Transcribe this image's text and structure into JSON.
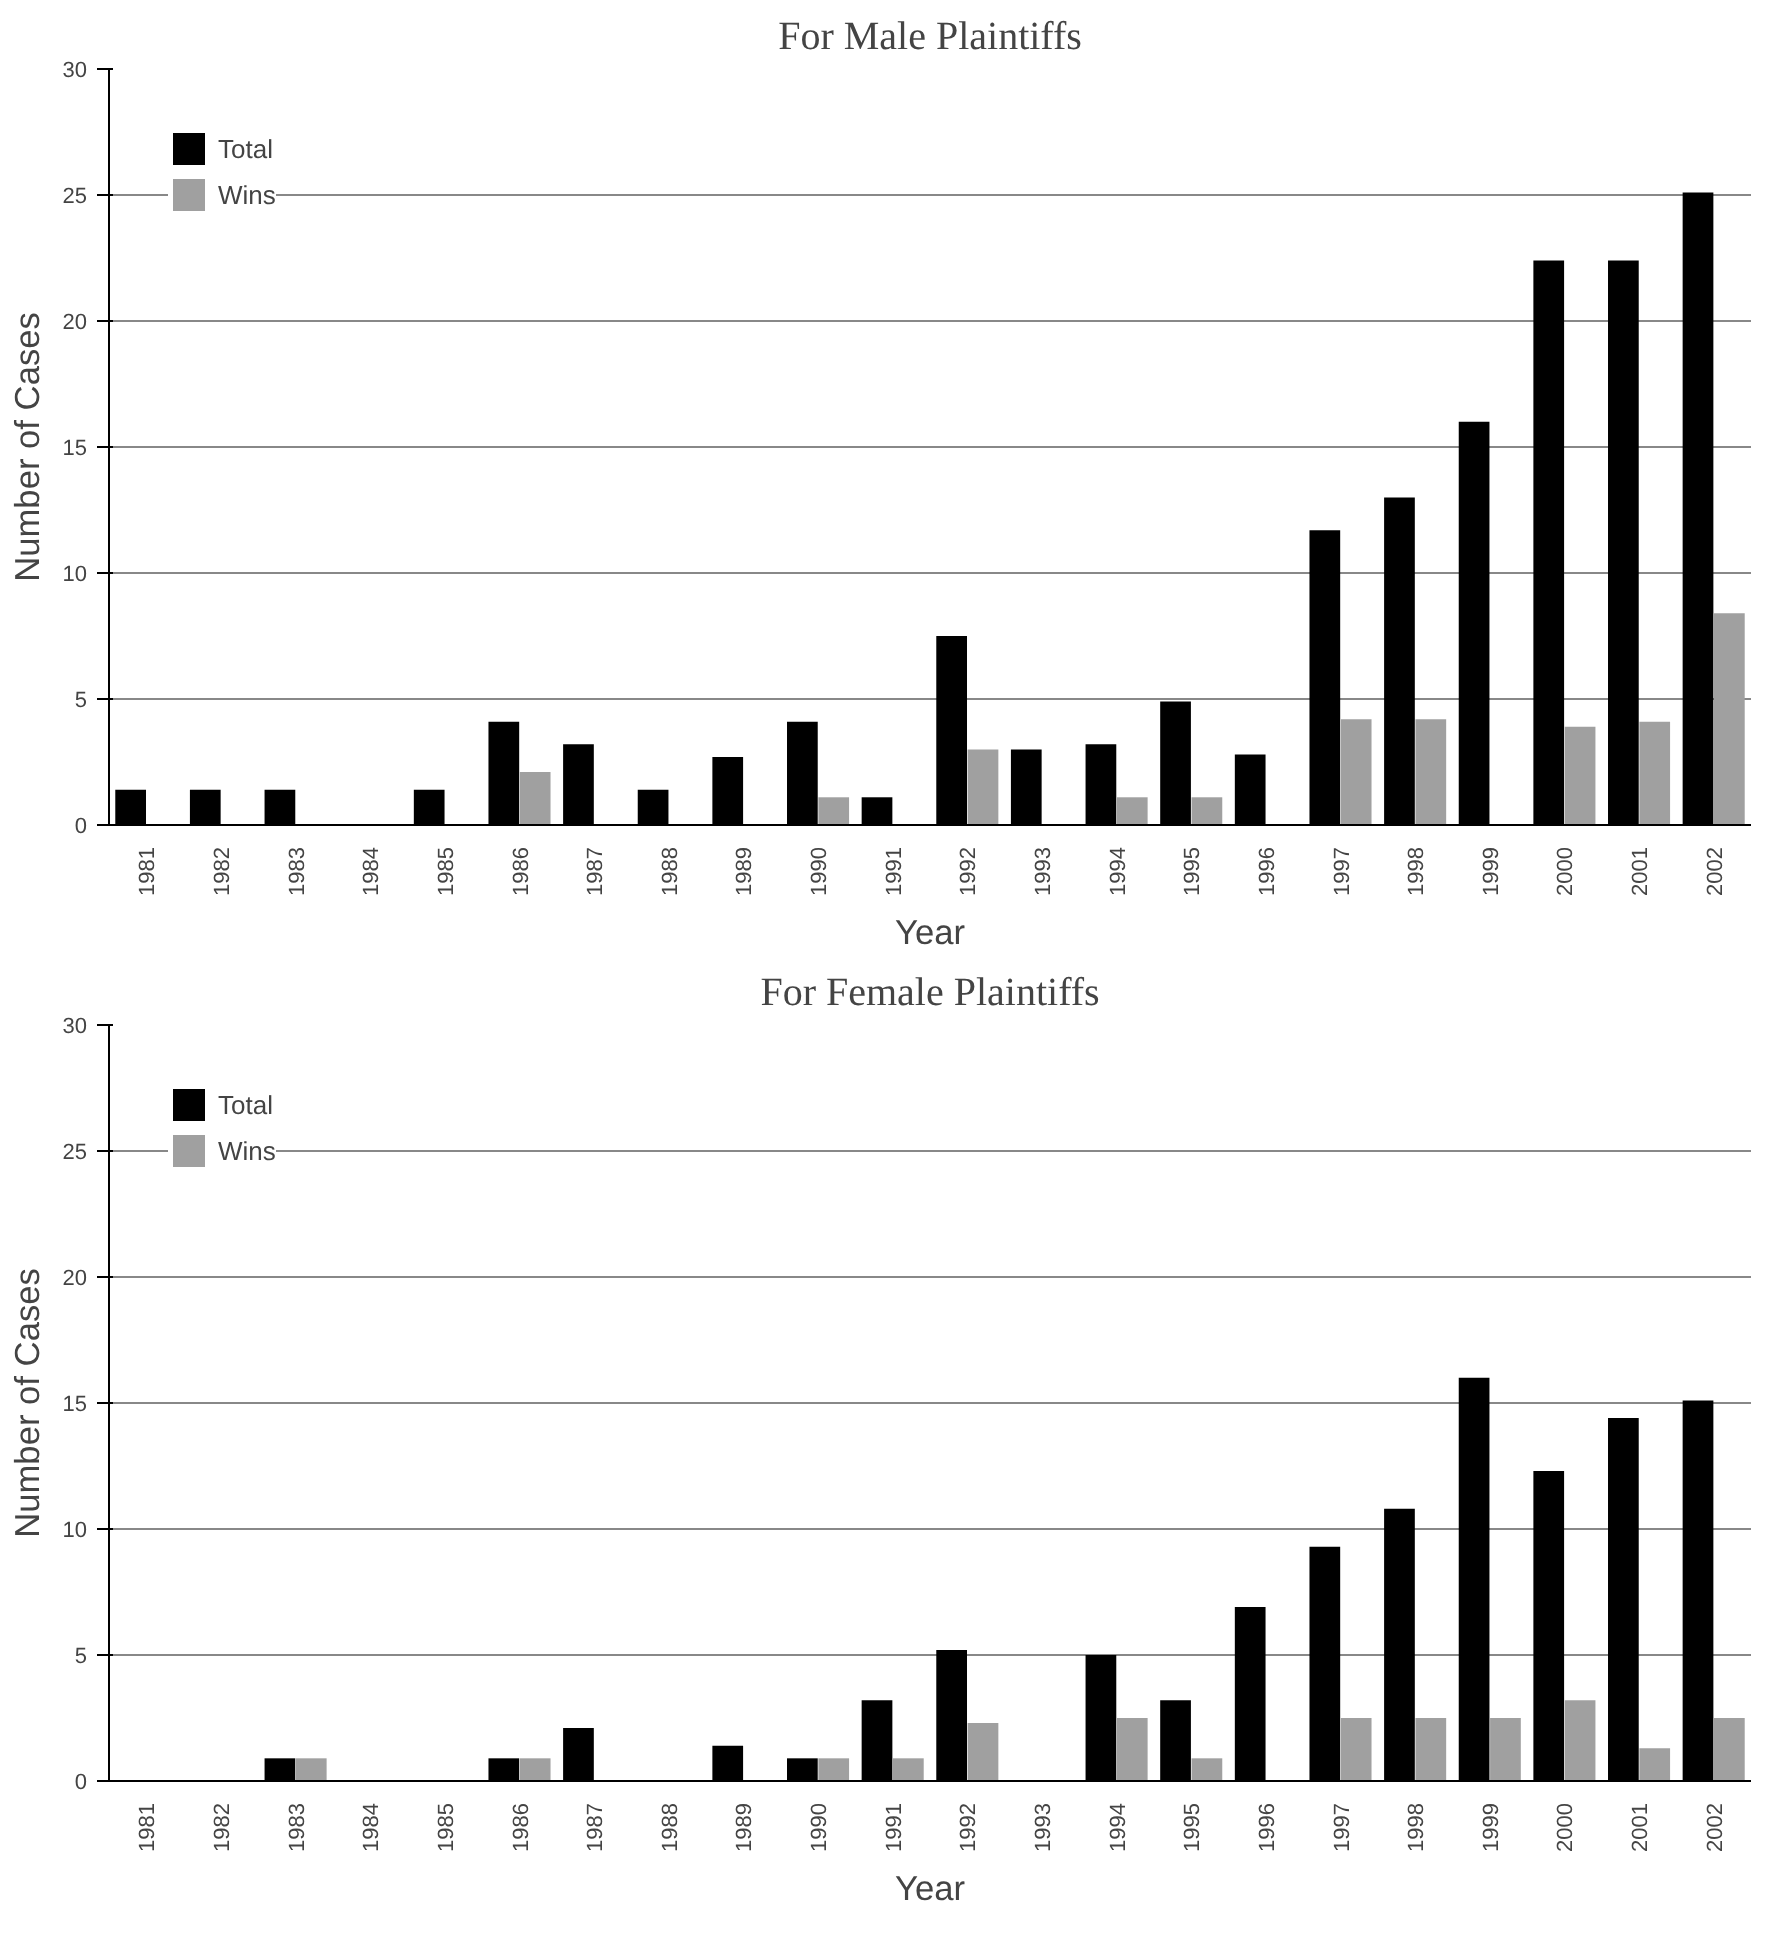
{
  "chart_data": [
    {
      "type": "bar",
      "title": "For Male Plaintiffs",
      "xlabel": "Year",
      "ylabel": "Number of Cases",
      "categories": [
        "1981",
        "1982",
        "1983",
        "1984",
        "1985",
        "1986",
        "1987",
        "1988",
        "1989",
        "1990",
        "1991",
        "1992",
        "1993",
        "1994",
        "1995",
        "1996",
        "1997",
        "1998",
        "1999",
        "2000",
        "2001",
        "2002"
      ],
      "series": [
        {
          "name": "Total",
          "color": "#000000",
          "values": [
            1.4,
            1.4,
            1.4,
            0,
            1.4,
            4.1,
            3.2,
            1.4,
            2.7,
            4.1,
            1.1,
            7.5,
            3.0,
            3.2,
            4.9,
            2.8,
            11.7,
            13.0,
            16.0,
            22.4,
            22.4,
            25.1
          ]
        },
        {
          "name": "Wins",
          "color": "#a0a0a0",
          "values": [
            0,
            0,
            0,
            0,
            0,
            2.1,
            0,
            0,
            0,
            1.1,
            0,
            3.0,
            0,
            1.1,
            1.1,
            0,
            4.2,
            4.2,
            0,
            3.9,
            4.1,
            8.4
          ]
        }
      ],
      "ylim": [
        0,
        30
      ],
      "yticks": [
        0,
        5,
        10,
        15,
        20,
        25,
        30
      ],
      "grid": "y",
      "legend": "top left"
    },
    {
      "type": "bar",
      "title": "For Female Plaintiffs",
      "xlabel": "Year",
      "ylabel": "Number of Cases",
      "categories": [
        "1981",
        "1982",
        "1983",
        "1984",
        "1985",
        "1986",
        "1987",
        "1988",
        "1989",
        "1990",
        "1991",
        "1992",
        "1993",
        "1994",
        "1995",
        "1996",
        "1997",
        "1998",
        "1999",
        "2000",
        "2001",
        "2002"
      ],
      "series": [
        {
          "name": "Total",
          "color": "#000000",
          "values": [
            0,
            0,
            0.9,
            0,
            0,
            0.9,
            2.1,
            0,
            1.4,
            0.9,
            3.2,
            5.2,
            0,
            5.0,
            3.2,
            6.9,
            9.3,
            10.8,
            16.0,
            12.3,
            14.4,
            15.1
          ]
        },
        {
          "name": "Wins",
          "color": "#a0a0a0",
          "values": [
            0,
            0,
            0.9,
            0,
            0,
            0.9,
            0,
            0,
            0,
            0.9,
            0.9,
            2.3,
            0,
            2.5,
            0.9,
            0,
            2.5,
            2.5,
            2.5,
            3.2,
            1.3,
            2.5
          ]
        }
      ],
      "ylim": [
        0,
        30
      ],
      "yticks": [
        0,
        5,
        10,
        15,
        20,
        25,
        30
      ],
      "grid": "y",
      "legend": "top left"
    }
  ]
}
